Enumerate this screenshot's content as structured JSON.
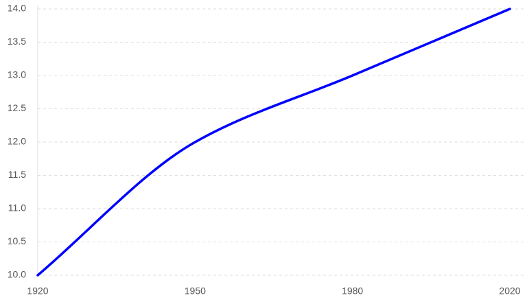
{
  "chart_data": {
    "type": "line",
    "categories": [
      "1920",
      "1950",
      "1980",
      "2020"
    ],
    "series": [
      {
        "color": "#0000ff",
        "values": [
          10,
          12,
          13,
          14
        ]
      }
    ],
    "ylim": [
      10,
      14
    ],
    "yticks": [
      {
        "value": 10,
        "label": "10.0"
      },
      {
        "value": 10.5,
        "label": "10.5"
      },
      {
        "value": 11,
        "label": "11.0"
      },
      {
        "value": 11.5,
        "label": "11.5"
      },
      {
        "value": 12,
        "label": "12.0"
      },
      {
        "value": 12.5,
        "label": "12.5"
      },
      {
        "value": 13,
        "label": "13.0"
      },
      {
        "value": 13.5,
        "label": "13.5"
      },
      {
        "value": 14,
        "label": "14.0"
      }
    ],
    "grid": true
  }
}
